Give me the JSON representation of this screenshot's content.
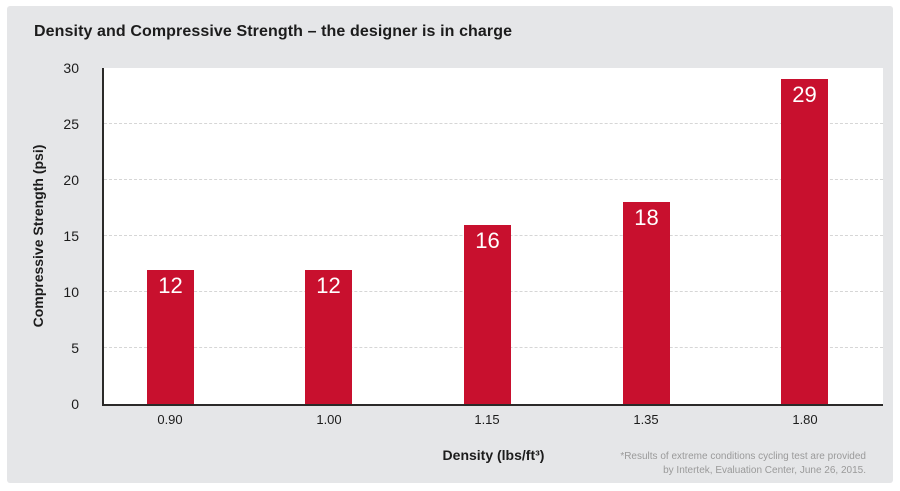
{
  "header": {
    "title": "Density and Compressive Strength – the designer is in charge"
  },
  "chart_data": {
    "type": "bar",
    "title": "Density and Compressive Strength – the designer is in charge",
    "categories": [
      "0.90",
      "1.00",
      "1.15",
      "1.35",
      "1.80"
    ],
    "values": [
      12,
      12,
      16,
      18,
      29
    ],
    "xlabel": "Density (lbs/ft³)",
    "ylabel": "Compressive Strength (psi)",
    "ylim": [
      0,
      30
    ],
    "yticks": [
      0,
      5,
      10,
      15,
      20,
      25,
      30
    ],
    "gridline_values": [
      5,
      10,
      15,
      20,
      25
    ],
    "grid_style": "dashed",
    "legend": "none",
    "bar_color": "#c8102e",
    "value_label_color": "#ffffff"
  },
  "footnote": {
    "line1": "*Results of extreme conditions cycling test are provided",
    "line2": "by Intertek, Evaluation Center, June 26, 2015."
  },
  "colors": {
    "page_bg": "#ffffff",
    "panel_bg": "#e5e6e8",
    "plot_bg": "#ffffff",
    "axis": "#2b2a29",
    "grid": "#d6d6d6",
    "text": "#1c1c1c",
    "footnote_text": "#9a9a9a"
  }
}
